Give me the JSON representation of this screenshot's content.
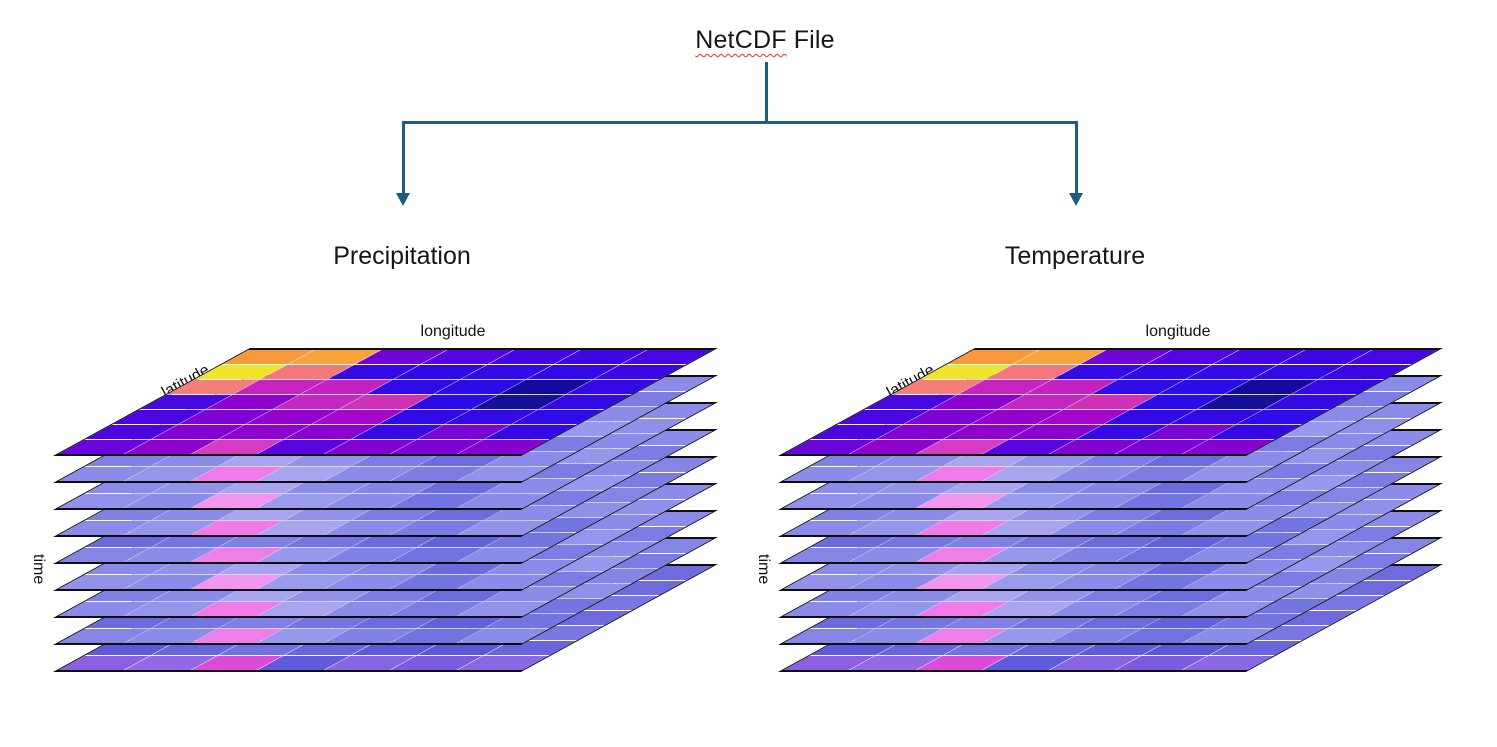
{
  "title": {
    "flagged_word": "NetCDF",
    "rest": "File"
  },
  "connector": {
    "color": "#1e5c80"
  },
  "branches": [
    {
      "label": "Precipitation"
    },
    {
      "label": "Temperature"
    }
  ],
  "axes": {
    "longitude": "longitude",
    "latitude": "latitude",
    "time": "time"
  },
  "stack": {
    "layers_total": 9,
    "grid": {
      "cols": 7,
      "rows": 7
    },
    "outline_color": "#0e0e0e",
    "top_layer_colors": [
      [
        "#F89A3C",
        "#F9A43A",
        "#7104D7",
        "#5505E1",
        "#4207E3",
        "#3D07E4",
        "#4807E2"
      ],
      [
        "#F1E42B",
        "#F4777C",
        "#3309E6",
        "#3009E6",
        "#340AE5",
        "#320AE5",
        "#3B08E4"
      ],
      [
        "#F37E7A",
        "#C723BF",
        "#C521C1",
        "#2E0BE7",
        "#2A0CE8",
        "#140A9E",
        "#330AE5"
      ],
      [
        "#4806E2",
        "#8E02CD",
        "#C326C1",
        "#CE31B4",
        "#2B0BE8",
        "#15109A",
        "#350AE5"
      ],
      [
        "#4A06E1",
        "#7F03D3",
        "#9203CB",
        "#A407C9",
        "#300BE6",
        "#3409E5",
        "#2F0BE7"
      ],
      [
        "#4C05E1",
        "#8402D1",
        "#8F02CC",
        "#8A02CF",
        "#3709E5",
        "#7A04D5",
        "#3409E5"
      ],
      [
        "#6A04DA",
        "#9101CC",
        "#D63BC4",
        "#5A05DF",
        "#8003D2",
        "#7D03D4",
        "#8502D0"
      ]
    ],
    "faded_layer_variants": [
      [
        [
          "#8B8BE9",
          "#9B9BEE",
          "#8B8BE9",
          "#9595EC",
          "#8888E8",
          "#7C7CE4",
          "#8B8BE9"
        ],
        [
          "#9595EC",
          "#8B8BE9",
          "#A5A0F0",
          "#8B8BE9",
          "#9090EA",
          "#6C6CDE",
          "#7C7CE4"
        ],
        [
          "#8B8BE9",
          "#9898ED",
          "#8B8BE9",
          "#A5A0F0",
          "#8B8BE9",
          "#6666DB",
          "#8B8BE9"
        ],
        [
          "#9B9BEE",
          "#8B8BE9",
          "#B0A8F2",
          "#8B8BE9",
          "#7C7CE4",
          "#6C6CDE",
          "#9898EE"
        ],
        [
          "#8B8BE9",
          "#9595EC",
          "#8B8BE9",
          "#9B9BEE",
          "#8585E6",
          "#6666DB",
          "#7C7CE4"
        ],
        [
          "#8080E5",
          "#8B8BE9",
          "#A9A4F0",
          "#9292EB",
          "#7C7CE4",
          "#6C6CDE",
          "#8B8BE9"
        ],
        [
          "#8B8BE9",
          "#9595EC",
          "#F07AE8",
          "#A9A4F0",
          "#8B8BE9",
          "#7C7CE4",
          "#9292EB"
        ]
      ],
      [
        [
          "#9B95EC",
          "#8B8BE9",
          "#9B9BEE",
          "#8B8BE9",
          "#9595EC",
          "#7575E2",
          "#8B8BE9"
        ],
        [
          "#8B8BE9",
          "#A29CEF",
          "#8B8BE9",
          "#9B9BEE",
          "#8585E6",
          "#6C6CDE",
          "#9090EA"
        ],
        [
          "#9595EC",
          "#8B8BE9",
          "#AFA7F2",
          "#9292EB",
          "#8B8BE9",
          "#7C7CE4",
          "#8B8BE9"
        ],
        [
          "#8B8BE9",
          "#9B9BEE",
          "#8B8BE9",
          "#A5A0F0",
          "#7C7CE4",
          "#6666DB",
          "#9595EC"
        ],
        [
          "#9B95EC",
          "#8B8BE9",
          "#9898ED",
          "#8B8BE9",
          "#9090EA",
          "#7575E2",
          "#7C7CE4"
        ],
        [
          "#8B8BE9",
          "#9292EB",
          "#A9A4F0",
          "#8B8BE9",
          "#8585E6",
          "#6C6CDE",
          "#8B8BE9"
        ],
        [
          "#9292EB",
          "#8B8BE9",
          "#F195EF",
          "#9B9BEE",
          "#8B8BE9",
          "#7575E2",
          "#8B8BE9"
        ]
      ],
      [
        [
          "#8585E6",
          "#9090EA",
          "#8585E6",
          "#9595EC",
          "#8080E5",
          "#7272E0",
          "#8585E6"
        ],
        [
          "#9090EA",
          "#8585E6",
          "#9B9BEE",
          "#8585E6",
          "#8B8BE9",
          "#6666DB",
          "#7C7CE4"
        ],
        [
          "#8585E6",
          "#9292EB",
          "#8585E6",
          "#9B9BEE",
          "#8585E6",
          "#6060D9",
          "#8585E6"
        ],
        [
          "#9595EC",
          "#8585E6",
          "#A5A0F0",
          "#8585E6",
          "#7878E2",
          "#6666DB",
          "#9090EA"
        ],
        [
          "#7C7CE4",
          "#8B8BE9",
          "#8080E5",
          "#9292EB",
          "#7C7CE4",
          "#6060D9",
          "#7575E2"
        ],
        [
          "#6B6BDE",
          "#7575E2",
          "#7F7FE5",
          "#7575E2",
          "#6B6BDE",
          "#6161DB",
          "#7575E2"
        ],
        [
          "#8585E6",
          "#8B8BE9",
          "#EE7FE9",
          "#9898ED",
          "#8282E6",
          "#7272E0",
          "#8B8BE9"
        ]
      ],
      [
        [
          "#6F6BDE",
          "#7A76E2",
          "#6F6BDE",
          "#8480E6",
          "#6F6BDE",
          "#6561DB",
          "#6F6BDE"
        ],
        [
          "#7A76E2",
          "#6F6BDE",
          "#8E8AE9",
          "#6F6BDE",
          "#7A76E2",
          "#5B57D8",
          "#6F6BDE"
        ],
        [
          "#6F6BDE",
          "#8480E6",
          "#6F6BDE",
          "#8E8AE9",
          "#6F6BDE",
          "#6561DB",
          "#7A76E2"
        ],
        [
          "#8480E6",
          "#6F6BDE",
          "#9890EC",
          "#7A76E2",
          "#6F6BDE",
          "#5B57D8",
          "#6F6BDE"
        ],
        [
          "#6F6BDE",
          "#7A76E2",
          "#8480E6",
          "#6F6BDE",
          "#7A76E2",
          "#6561DB",
          "#7A76E2"
        ],
        [
          "#5E5ADA",
          "#6966DD",
          "#7370E0",
          "#6966DD",
          "#5E5ADA",
          "#5B57D8",
          "#6966DD"
        ],
        [
          "#8A5FE0",
          "#9168E5",
          "#DC4AD7",
          "#5F5BDC",
          "#8765E2",
          "#7D5BE0",
          "#8A67E3"
        ]
      ]
    ],
    "faded_sequence": [
      0,
      1,
      0,
      2,
      1,
      0,
      2,
      3
    ]
  }
}
